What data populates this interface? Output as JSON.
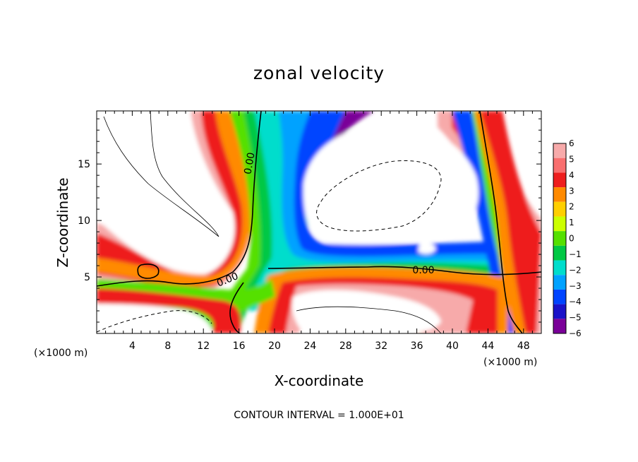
{
  "chart_data": {
    "type": "heatmap",
    "title": "zonal velocity",
    "xlabel": "X-coordinate",
    "ylabel": "Z-coordinate",
    "x_unit": "(×1000 m)",
    "z_unit": "(×1000 m)",
    "xlim": [
      0,
      50
    ],
    "ylim": [
      0,
      19.7
    ],
    "x_ticks": [
      4,
      8,
      12,
      16,
      20,
      24,
      28,
      32,
      36,
      40,
      44,
      48
    ],
    "y_ticks": [
      5,
      10,
      15
    ],
    "colorbar": {
      "levels": [
        6,
        5,
        4,
        3,
        2,
        1,
        0,
        -1,
        -2,
        -3,
        -4,
        -5,
        -6
      ],
      "colors": [
        "#f7aaaa",
        "#f96f6f",
        "#ee1e1e",
        "#ff8a00",
        "#ffcf00",
        "#ccff00",
        "#55e000",
        "#00c844",
        "#00ddcc",
        "#00a2ff",
        "#0044ff",
        "#1a12c8",
        "#7a0098"
      ]
    },
    "contour_labels": [
      "0.00",
      "0.00",
      "0.00"
    ],
    "footer": "CONTOUR INTERVAL = 1.000E+01"
  }
}
